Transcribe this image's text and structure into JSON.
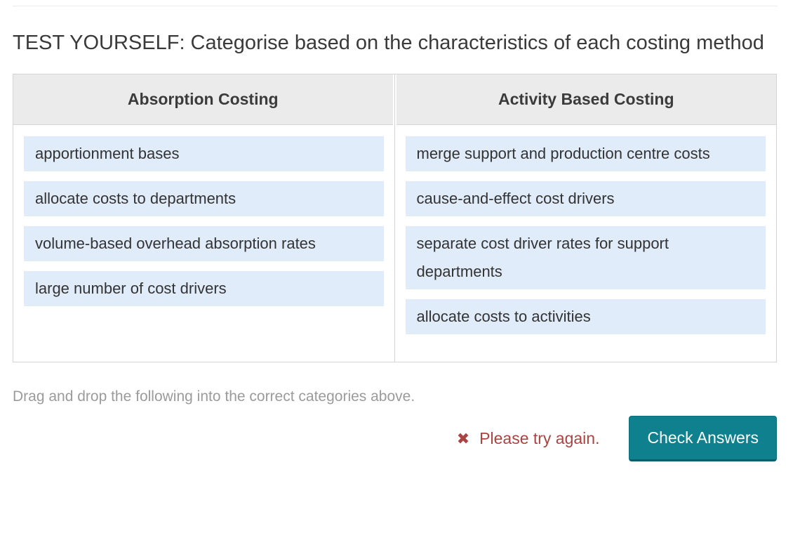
{
  "title": "TEST YOURSELF: Categorise based on the characteristics of each costing method",
  "columns": [
    {
      "header": "Absorption Costing",
      "items": [
        "apportionment bases",
        "allocate costs to departments",
        "volume-based overhead absorption rates",
        "large number of cost drivers"
      ]
    },
    {
      "header": "Activity Based Costing",
      "items": [
        "merge support and production centre costs",
        "cause-and-effect cost drivers",
        "separate cost driver rates for support departments",
        "allocate costs to activities"
      ]
    }
  ],
  "instruction": "Drag and drop the following into the correct categories above.",
  "feedback": {
    "icon": "✖",
    "message": "Please try again.",
    "color": "#a94442"
  },
  "check_button": {
    "label": "Check Answers",
    "background": "#0e808e",
    "text_color": "#ffffff"
  },
  "colors": {
    "item_background": "#e1ecfa",
    "header_background": "#ebebeb",
    "table_border": "#d4d4d4",
    "instruction_text": "#9b9b9b",
    "title_text": "#3a3a3a"
  }
}
